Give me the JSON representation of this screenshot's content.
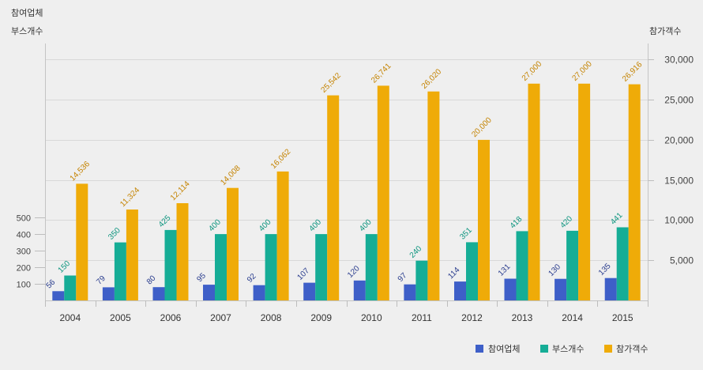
{
  "chart_data": {
    "type": "bar",
    "title": "",
    "categories": [
      "2004",
      "2005",
      "2006",
      "2007",
      "2008",
      "2009",
      "2010",
      "2011",
      "2012",
      "2013",
      "2014",
      "2015"
    ],
    "series": [
      {
        "name": "참여업체",
        "y_axis": 0,
        "color": "#3e5fc8",
        "label_color": "#2a3d8e",
        "values": [
          56,
          79,
          80,
          95,
          92,
          107,
          120,
          97,
          114,
          131,
          130,
          135
        ]
      },
      {
        "name": "부스개수",
        "y_axis": 0,
        "color": "#16ad96",
        "label_color": "#0d957f",
        "values": [
          150,
          350,
          425,
          400,
          400,
          400,
          400,
          240,
          351,
          418,
          420,
          441
        ]
      },
      {
        "name": "참가객수",
        "y_axis": 1,
        "color": "#efab08",
        "label_color": "#c48300",
        "values": [
          14536,
          11324,
          12114,
          14008,
          16062,
          25542,
          26741,
          26020,
          20000,
          27000,
          27000,
          26916
        ]
      }
    ],
    "left_axis": {
      "title_lines": [
        "참여업체",
        "부스개수"
      ],
      "ticks": [
        100,
        200,
        300,
        400,
        500
      ],
      "range": [
        0,
        1550
      ]
    },
    "right_axis": {
      "title": "참가객수",
      "ticks": [
        5000,
        10000,
        15000,
        20000,
        25000,
        30000
      ],
      "range": [
        0,
        32000
      ]
    },
    "grid": true,
    "legend_position": "bottom-right"
  }
}
